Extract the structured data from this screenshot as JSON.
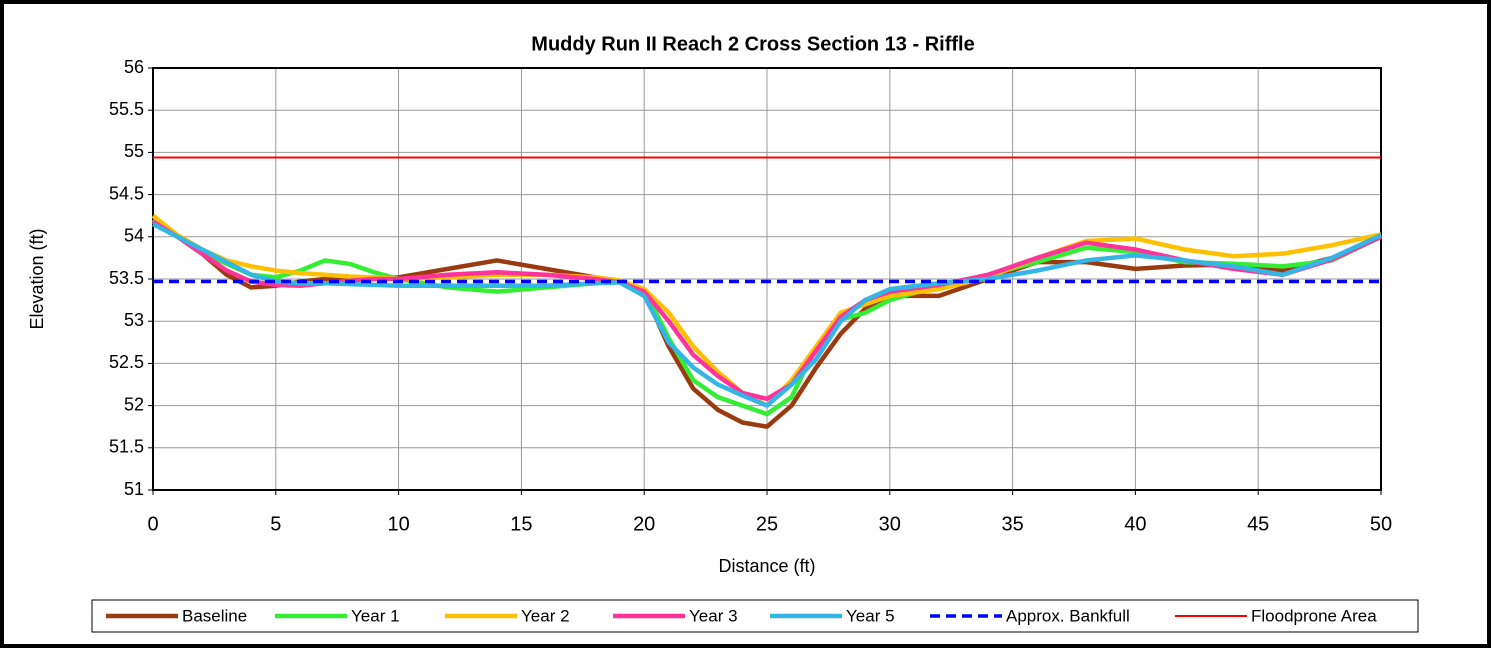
{
  "chart_data": {
    "type": "line",
    "title": "Muddy Run II Reach 2 Cross Section 13 - Riffle",
    "xlabel": "Distance (ft)",
    "ylabel": "Elevation (ft)",
    "x": [
      0,
      1,
      2,
      3,
      4,
      5,
      6,
      7,
      8,
      9,
      10,
      12,
      14,
      16,
      18,
      19,
      20,
      21,
      22,
      23,
      24,
      25,
      26,
      27,
      28,
      29,
      30,
      32,
      34,
      36,
      38,
      40,
      42,
      44,
      46,
      48,
      50
    ],
    "series": [
      {
        "name": "Baseline",
        "color": "#9b3a10",
        "values": [
          54.2,
          54.0,
          53.8,
          53.55,
          53.4,
          53.42,
          53.47,
          53.5,
          53.5,
          53.5,
          53.52,
          53.62,
          53.72,
          53.62,
          53.52,
          53.48,
          53.35,
          52.7,
          52.2,
          51.95,
          51.8,
          51.75,
          52.0,
          52.45,
          52.85,
          53.15,
          53.3,
          53.3,
          53.5,
          53.7,
          53.7,
          53.62,
          53.66,
          53.67,
          53.6,
          53.75,
          54.0
        ]
      },
      {
        "name": "Year 1",
        "color": "#33ee33",
        "values": [
          54.2,
          54.0,
          53.82,
          53.68,
          53.55,
          53.52,
          53.6,
          53.72,
          53.68,
          53.58,
          53.5,
          53.4,
          53.35,
          53.4,
          53.45,
          53.47,
          53.38,
          52.8,
          52.3,
          52.1,
          52.0,
          51.9,
          52.1,
          52.7,
          53.02,
          53.1,
          53.25,
          53.42,
          53.55,
          53.7,
          53.87,
          53.82,
          53.7,
          53.68,
          53.65,
          53.72,
          54.0
        ]
      },
      {
        "name": "Year 2",
        "color": "#ffc000",
        "values": [
          54.25,
          54.02,
          53.85,
          53.72,
          53.65,
          53.6,
          53.57,
          53.55,
          53.53,
          53.52,
          53.5,
          53.52,
          53.55,
          53.55,
          53.52,
          53.48,
          53.38,
          53.1,
          52.7,
          52.4,
          52.15,
          52.0,
          52.3,
          52.7,
          53.1,
          53.2,
          53.3,
          53.38,
          53.52,
          53.75,
          53.95,
          53.98,
          53.85,
          53.77,
          53.8,
          53.9,
          54.03
        ]
      },
      {
        "name": "Year 3",
        "color": "#ff3399",
        "values": [
          54.18,
          54.0,
          53.8,
          53.6,
          53.47,
          53.43,
          53.42,
          53.45,
          53.48,
          53.5,
          53.5,
          53.55,
          53.58,
          53.55,
          53.5,
          53.46,
          53.35,
          53.0,
          52.6,
          52.35,
          52.15,
          52.08,
          52.25,
          52.65,
          53.05,
          53.25,
          53.35,
          53.43,
          53.55,
          53.75,
          53.93,
          53.85,
          53.72,
          53.62,
          53.55,
          53.73,
          54.0
        ]
      },
      {
        "name": "Year 5",
        "color": "#33b5e5",
        "values": [
          54.15,
          54.0,
          53.85,
          53.7,
          53.55,
          53.47,
          53.45,
          53.45,
          53.44,
          53.43,
          53.42,
          53.42,
          53.42,
          53.42,
          53.45,
          53.46,
          53.3,
          52.75,
          52.45,
          52.25,
          52.12,
          52.0,
          52.25,
          52.55,
          53.0,
          53.25,
          53.38,
          53.45,
          53.5,
          53.6,
          53.72,
          53.78,
          53.72,
          53.65,
          53.55,
          53.75,
          54.02
        ]
      },
      {
        "name": "Approx. Bankfull",
        "color": "#0000ff",
        "dashed": true,
        "x": [
          0,
          50
        ],
        "values": [
          53.47,
          53.47
        ]
      },
      {
        "name": "Floodprone Area",
        "color": "#ff0000",
        "x": [
          0,
          50
        ],
        "values": [
          54.94,
          54.94
        ]
      }
    ],
    "xlim": [
      0,
      50
    ],
    "xticks": [
      0,
      5,
      10,
      15,
      20,
      25,
      30,
      35,
      40,
      45,
      50
    ],
    "ylim": [
      51,
      56
    ],
    "yticks": [
      51,
      51.5,
      52,
      52.5,
      53,
      53.5,
      54,
      54.5,
      55,
      55.5,
      56
    ],
    "grid": true,
    "legend": "bottom"
  }
}
